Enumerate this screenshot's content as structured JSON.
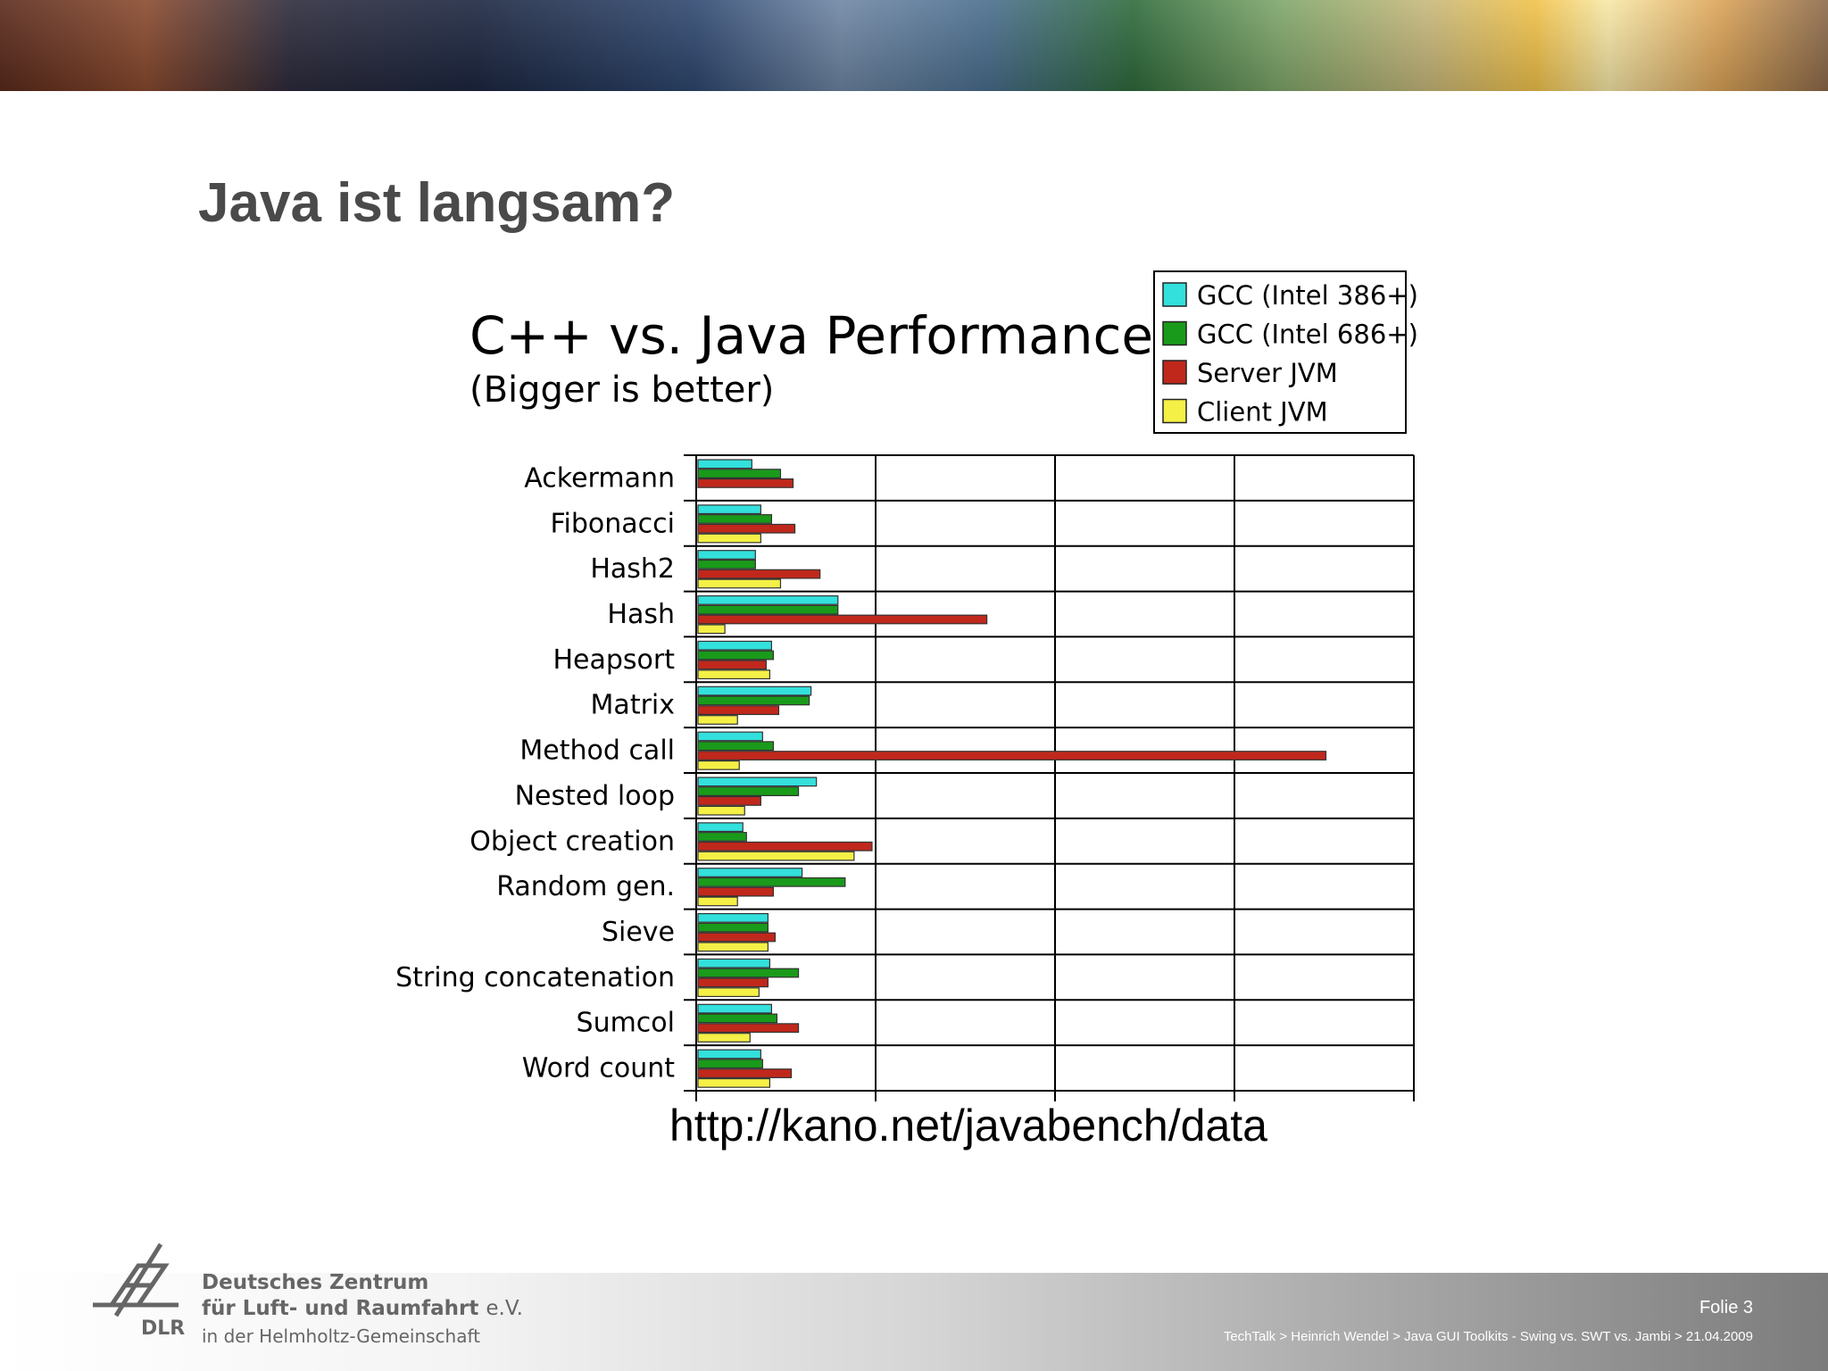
{
  "slide": {
    "title": "Java ist langsam?",
    "source_url": "http://kano.net/javabench/data"
  },
  "footer": {
    "org_line1": "Deutsches Zentrum",
    "org_line2": "für Luft- und Raumfahrt",
    "org_line2_suffix": "e.V.",
    "org_line3": "in der Helmholtz-Gemeinschaft",
    "logo_text": "DLR",
    "slide_number": "Folie 3",
    "breadcrumb": "TechTalk > Heinrich Wendel > Java GUI Toolkits - Swing vs. SWT vs. Jambi > 21.04.2009"
  },
  "chart_data": {
    "type": "bar",
    "orientation": "horizontal",
    "title": "C++ vs. Java Performance",
    "subtitle": "(Bigger is better)",
    "xlabel": "",
    "ylabel": "",
    "xlim": [
      0,
      4
    ],
    "grid": true,
    "legend_position": "top-right",
    "categories": [
      "Ackermann",
      "Fibonacci",
      "Hash2",
      "Hash",
      "Heapsort",
      "Matrix",
      "Method call",
      "Nested loop",
      "Object creation",
      "Random gen.",
      "Sieve",
      "String concatenation",
      "Sumcol",
      "Word count"
    ],
    "series": [
      {
        "name": "GCC (Intel 386+)",
        "color": "#33e0dc",
        "values": [
          0.3,
          0.35,
          0.32,
          0.78,
          0.41,
          0.63,
          0.36,
          0.66,
          0.25,
          0.58,
          0.39,
          0.4,
          0.41,
          0.35
        ]
      },
      {
        "name": "GCC (Intel 686+)",
        "color": "#1a9a1a",
        "values": [
          0.46,
          0.41,
          0.32,
          0.78,
          0.42,
          0.62,
          0.42,
          0.56,
          0.27,
          0.82,
          0.39,
          0.56,
          0.44,
          0.36
        ]
      },
      {
        "name": "Server JVM",
        "color": "#c0281c",
        "values": [
          0.53,
          0.54,
          0.68,
          1.61,
          0.38,
          0.45,
          3.5,
          0.35,
          0.97,
          0.42,
          0.43,
          0.39,
          0.56,
          0.52
        ]
      },
      {
        "name": "Client JVM",
        "color": "#f4f046",
        "values": [
          null,
          0.35,
          0.46,
          0.15,
          0.4,
          0.22,
          0.23,
          0.26,
          0.87,
          0.22,
          0.39,
          0.34,
          0.29,
          0.4
        ]
      }
    ]
  }
}
